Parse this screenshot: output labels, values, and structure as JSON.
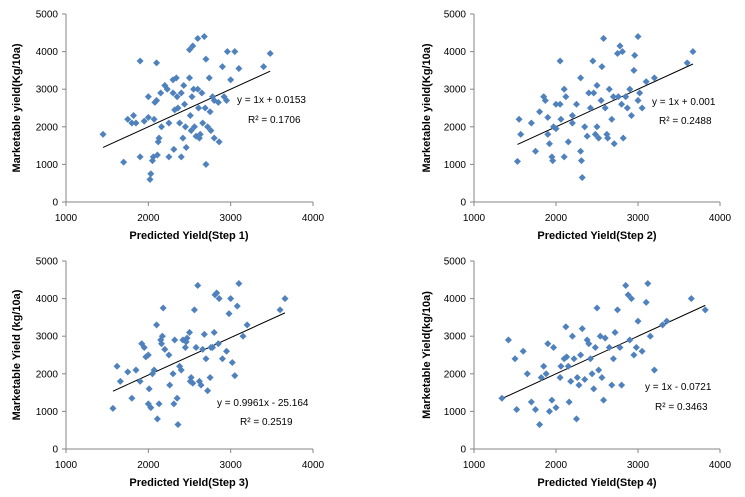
{
  "chart_data": [
    {
      "type": "scatter",
      "xlabel": "Predicted Yield(Step 1)",
      "ylabel": "Marketable yield(Kg/10a)",
      "xlim": [
        1000,
        4000
      ],
      "ylim": [
        0,
        5000
      ],
      "xticks": [
        "1000",
        "2000",
        "3000",
        "4000"
      ],
      "yticks": [
        "0",
        "1000",
        "2000",
        "3000",
        "4000",
        "5000"
      ],
      "equation": "y = 1x + 0.0153",
      "r2": "R² = 0.1706",
      "trend": {
        "slope": 1,
        "intercept": 0.0153,
        "x_range": [
          1450,
          3480
        ]
      },
      "color": "#4f81bd",
      "points": [
        [
          1450,
          1800
        ],
        [
          1700,
          1060
        ],
        [
          1750,
          2200
        ],
        [
          1800,
          2100
        ],
        [
          1820,
          2300
        ],
        [
          1850,
          2100
        ],
        [
          1900,
          1200
        ],
        [
          1900,
          3750
        ],
        [
          1950,
          2150
        ],
        [
          2000,
          2250
        ],
        [
          2000,
          2800
        ],
        [
          2020,
          600
        ],
        [
          2030,
          750
        ],
        [
          2050,
          1100
        ],
        [
          2060,
          1200
        ],
        [
          2070,
          2200
        ],
        [
          2080,
          2650
        ],
        [
          2100,
          3700
        ],
        [
          2100,
          2700
        ],
        [
          2110,
          1250
        ],
        [
          2120,
          1600
        ],
        [
          2130,
          1700
        ],
        [
          2150,
          2900
        ],
        [
          2160,
          2000
        ],
        [
          2200,
          3100
        ],
        [
          2230,
          3000
        ],
        [
          2250,
          2100
        ],
        [
          2250,
          1200
        ],
        [
          2300,
          3250
        ],
        [
          2300,
          2900
        ],
        [
          2310,
          1400
        ],
        [
          2320,
          2450
        ],
        [
          2340,
          3300
        ],
        [
          2350,
          2800
        ],
        [
          2360,
          2500
        ],
        [
          2380,
          2100
        ],
        [
          2400,
          2900
        ],
        [
          2400,
          1200
        ],
        [
          2420,
          1700
        ],
        [
          2430,
          3100
        ],
        [
          2440,
          2600
        ],
        [
          2450,
          2000
        ],
        [
          2460,
          1450
        ],
        [
          2500,
          3300
        ],
        [
          2500,
          4050
        ],
        [
          2510,
          2300
        ],
        [
          2520,
          1900
        ],
        [
          2530,
          2800
        ],
        [
          2540,
          4150
        ],
        [
          2550,
          3000
        ],
        [
          2560,
          2000
        ],
        [
          2580,
          1750
        ],
        [
          2600,
          4350
        ],
        [
          2600,
          3000
        ],
        [
          2610,
          2500
        ],
        [
          2620,
          1700
        ],
        [
          2630,
          1800
        ],
        [
          2650,
          2900
        ],
        [
          2660,
          2100
        ],
        [
          2680,
          4400
        ],
        [
          2690,
          2500
        ],
        [
          2700,
          3800
        ],
        [
          2700,
          1000
        ],
        [
          2720,
          2000
        ],
        [
          2740,
          3300
        ],
        [
          2750,
          2400
        ],
        [
          2760,
          1900
        ],
        [
          2780,
          2800
        ],
        [
          2800,
          2700
        ],
        [
          2800,
          1700
        ],
        [
          2850,
          2650
        ],
        [
          2860,
          1600
        ],
        [
          2900,
          3600
        ],
        [
          2920,
          2800
        ],
        [
          2950,
          2700
        ],
        [
          2960,
          4000
        ],
        [
          3000,
          3250
        ],
        [
          3050,
          4000
        ],
        [
          3100,
          3550
        ],
        [
          3400,
          3600
        ],
        [
          3480,
          3950
        ]
      ]
    },
    {
      "type": "scatter",
      "xlabel": "Predicted Yield(Step 2)",
      "ylabel": "Marketable yield(Kg/10a)",
      "xlim": [
        1000,
        4000
      ],
      "ylim": [
        0,
        5000
      ],
      "xticks": [
        "1000",
        "2000",
        "3000",
        "4000"
      ],
      "yticks": [
        "0",
        "1000",
        "2000",
        "3000",
        "4000",
        "5000"
      ],
      "equation": "y = 1x + 0.001",
      "r2": "R² = 0.2488",
      "trend": {
        "slope": 1,
        "intercept": 0.001,
        "x_range": [
          1530,
          3670
        ]
      },
      "color": "#4f81bd",
      "points": [
        [
          1530,
          1080
        ],
        [
          1550,
          2200
        ],
        [
          1570,
          1800
        ],
        [
          1700,
          2100
        ],
        [
          1750,
          1350
        ],
        [
          1800,
          2400
        ],
        [
          1850,
          2800
        ],
        [
          1870,
          2700
        ],
        [
          1900,
          2250
        ],
        [
          1900,
          1800
        ],
        [
          1920,
          1550
        ],
        [
          1950,
          1200
        ],
        [
          1960,
          1100
        ],
        [
          1970,
          2000
        ],
        [
          2000,
          2600
        ],
        [
          2000,
          1950
        ],
        [
          2050,
          3750
        ],
        [
          2050,
          2600
        ],
        [
          2060,
          2200
        ],
        [
          2100,
          3000
        ],
        [
          2100,
          1200
        ],
        [
          2120,
          2800
        ],
        [
          2150,
          1600
        ],
        [
          2200,
          2300
        ],
        [
          2200,
          2100
        ],
        [
          2250,
          2600
        ],
        [
          2300,
          3300
        ],
        [
          2300,
          1350
        ],
        [
          2310,
          1100
        ],
        [
          2320,
          650
        ],
        [
          2350,
          2000
        ],
        [
          2380,
          1750
        ],
        [
          2400,
          2900
        ],
        [
          2420,
          2500
        ],
        [
          2450,
          3750
        ],
        [
          2460,
          2900
        ],
        [
          2480,
          1800
        ],
        [
          2500,
          3100
        ],
        [
          2500,
          2000
        ],
        [
          2520,
          1700
        ],
        [
          2550,
          2700
        ],
        [
          2560,
          3600
        ],
        [
          2580,
          4350
        ],
        [
          2600,
          2500
        ],
        [
          2620,
          1800
        ],
        [
          2630,
          1700
        ],
        [
          2650,
          3000
        ],
        [
          2680,
          2200
        ],
        [
          2700,
          2800
        ],
        [
          2710,
          1550
        ],
        [
          2750,
          3950
        ],
        [
          2760,
          2800
        ],
        [
          2780,
          4150
        ],
        [
          2800,
          2600
        ],
        [
          2810,
          4000
        ],
        [
          2820,
          1700
        ],
        [
          2850,
          2800
        ],
        [
          2870,
          2500
        ],
        [
          2900,
          3000
        ],
        [
          2920,
          2300
        ],
        [
          2950,
          3500
        ],
        [
          2960,
          3900
        ],
        [
          3000,
          2700
        ],
        [
          3000,
          4400
        ],
        [
          3020,
          2900
        ],
        [
          3050,
          2500
        ],
        [
          3100,
          3200
        ],
        [
          3200,
          3300
        ],
        [
          3600,
          3700
        ],
        [
          3670,
          4000
        ]
      ]
    },
    {
      "type": "scatter",
      "xlabel": "Predicted Yield(Step 3)",
      "ylabel": "Marketable Yield (kg/10a)",
      "xlim": [
        1000,
        4000
      ],
      "ylim": [
        0,
        5000
      ],
      "xticks": [
        "1000",
        "2000",
        "3000",
        "4000"
      ],
      "yticks": [
        "0",
        "1000",
        "2000",
        "3000",
        "4000",
        "5000"
      ],
      "equation": "y = 0.9961x - 25.164",
      "r2": "R² = 0.2519",
      "trend": {
        "slope": 0.9961,
        "intercept": -25.164,
        "x_range": [
          1570,
          3660
        ]
      },
      "color": "#4f81bd",
      "points": [
        [
          1570,
          1080
        ],
        [
          1620,
          2200
        ],
        [
          1660,
          1800
        ],
        [
          1750,
          2050
        ],
        [
          1800,
          1350
        ],
        [
          1850,
          2100
        ],
        [
          1900,
          1800
        ],
        [
          1920,
          2800
        ],
        [
          1950,
          2700
        ],
        [
          1970,
          2450
        ],
        [
          2000,
          1200
        ],
        [
          2000,
          2500
        ],
        [
          2010,
          1600
        ],
        [
          2030,
          1100
        ],
        [
          2050,
          2000
        ],
        [
          2070,
          2100
        ],
        [
          2100,
          3300
        ],
        [
          2110,
          800
        ],
        [
          2130,
          1200
        ],
        [
          2150,
          2900
        ],
        [
          2160,
          2800
        ],
        [
          2170,
          3000
        ],
        [
          2180,
          3750
        ],
        [
          2200,
          2650
        ],
        [
          2250,
          2500
        ],
        [
          2260,
          1700
        ],
        [
          2300,
          2000
        ],
        [
          2310,
          1200
        ],
        [
          2320,
          2900
        ],
        [
          2350,
          1350
        ],
        [
          2360,
          650
        ],
        [
          2380,
          2200
        ],
        [
          2400,
          2100
        ],
        [
          2420,
          2900
        ],
        [
          2450,
          2700
        ],
        [
          2460,
          2850
        ],
        [
          2470,
          2950
        ],
        [
          2500,
          3100
        ],
        [
          2510,
          1800
        ],
        [
          2520,
          1900
        ],
        [
          2540,
          1750
        ],
        [
          2560,
          3700
        ],
        [
          2580,
          2700
        ],
        [
          2600,
          4350
        ],
        [
          2620,
          1800
        ],
        [
          2640,
          1700
        ],
        [
          2660,
          2650
        ],
        [
          2680,
          3050
        ],
        [
          2700,
          2400
        ],
        [
          2720,
          1550
        ],
        [
          2750,
          1900
        ],
        [
          2760,
          2700
        ],
        [
          2780,
          2700
        ],
        [
          2800,
          3100
        ],
        [
          2810,
          4100
        ],
        [
          2830,
          4150
        ],
        [
          2850,
          2800
        ],
        [
          2860,
          4000
        ],
        [
          2900,
          2400
        ],
        [
          2950,
          2600
        ],
        [
          2980,
          3600
        ],
        [
          3000,
          4000
        ],
        [
          3020,
          2300
        ],
        [
          3050,
          1950
        ],
        [
          3080,
          3800
        ],
        [
          3100,
          4400
        ],
        [
          3150,
          3000
        ],
        [
          3200,
          3300
        ],
        [
          3600,
          3700
        ],
        [
          3660,
          4000
        ]
      ]
    },
    {
      "type": "scatter",
      "xlabel": "Predicted Yield(Step 4)",
      "ylabel": "Marketable Yield(kg/10a)",
      "xlim": [
        1000,
        4000
      ],
      "ylim": [
        0,
        5000
      ],
      "xticks": [
        "1000",
        "2000",
        "3000",
        "4000"
      ],
      "yticks": [
        "0",
        "1000",
        "2000",
        "3000",
        "4000",
        "5000"
      ],
      "equation": "y = 1x - 0.0721",
      "r2": "R² = 0.3463",
      "trend": {
        "slope": 1,
        "intercept": -0.0721,
        "x_range": [
          1340,
          3820
        ]
      },
      "color": "#4f81bd",
      "points": [
        [
          1340,
          1350
        ],
        [
          1420,
          2900
        ],
        [
          1500,
          2400
        ],
        [
          1520,
          1050
        ],
        [
          1600,
          2600
        ],
        [
          1650,
          2000
        ],
        [
          1700,
          1250
        ],
        [
          1750,
          1050
        ],
        [
          1800,
          650
        ],
        [
          1820,
          1900
        ],
        [
          1850,
          2200
        ],
        [
          1880,
          2000
        ],
        [
          1900,
          2800
        ],
        [
          1920,
          1000
        ],
        [
          1950,
          1300
        ],
        [
          1970,
          2700
        ],
        [
          2000,
          1100
        ],
        [
          2050,
          1900
        ],
        [
          2060,
          2200
        ],
        [
          2100,
          2400
        ],
        [
          2120,
          3250
        ],
        [
          2130,
          2450
        ],
        [
          2150,
          2200
        ],
        [
          2160,
          1250
        ],
        [
          2180,
          1800
        ],
        [
          2200,
          3000
        ],
        [
          2220,
          2400
        ],
        [
          2250,
          800
        ],
        [
          2260,
          1900
        ],
        [
          2280,
          1700
        ],
        [
          2300,
          2500
        ],
        [
          2320,
          3200
        ],
        [
          2350,
          1850
        ],
        [
          2380,
          2900
        ],
        [
          2400,
          2800
        ],
        [
          2420,
          2400
        ],
        [
          2440,
          2000
        ],
        [
          2460,
          1600
        ],
        [
          2480,
          2700
        ],
        [
          2500,
          3750
        ],
        [
          2520,
          2100
        ],
        [
          2540,
          3000
        ],
        [
          2560,
          1900
        ],
        [
          2580,
          1300
        ],
        [
          2600,
          2950
        ],
        [
          2650,
          2700
        ],
        [
          2680,
          1700
        ],
        [
          2700,
          2400
        ],
        [
          2720,
          3100
        ],
        [
          2750,
          3700
        ],
        [
          2780,
          2700
        ],
        [
          2800,
          1700
        ],
        [
          2850,
          4350
        ],
        [
          2880,
          4100
        ],
        [
          2900,
          2900
        ],
        [
          2920,
          4000
        ],
        [
          2950,
          2500
        ],
        [
          2980,
          2700
        ],
        [
          3000,
          3400
        ],
        [
          3050,
          2600
        ],
        [
          3100,
          3900
        ],
        [
          3120,
          4400
        ],
        [
          3150,
          3000
        ],
        [
          3200,
          2100
        ],
        [
          3300,
          3300
        ],
        [
          3350,
          3400
        ],
        [
          3650,
          4000
        ],
        [
          3820,
          3700
        ]
      ]
    }
  ]
}
